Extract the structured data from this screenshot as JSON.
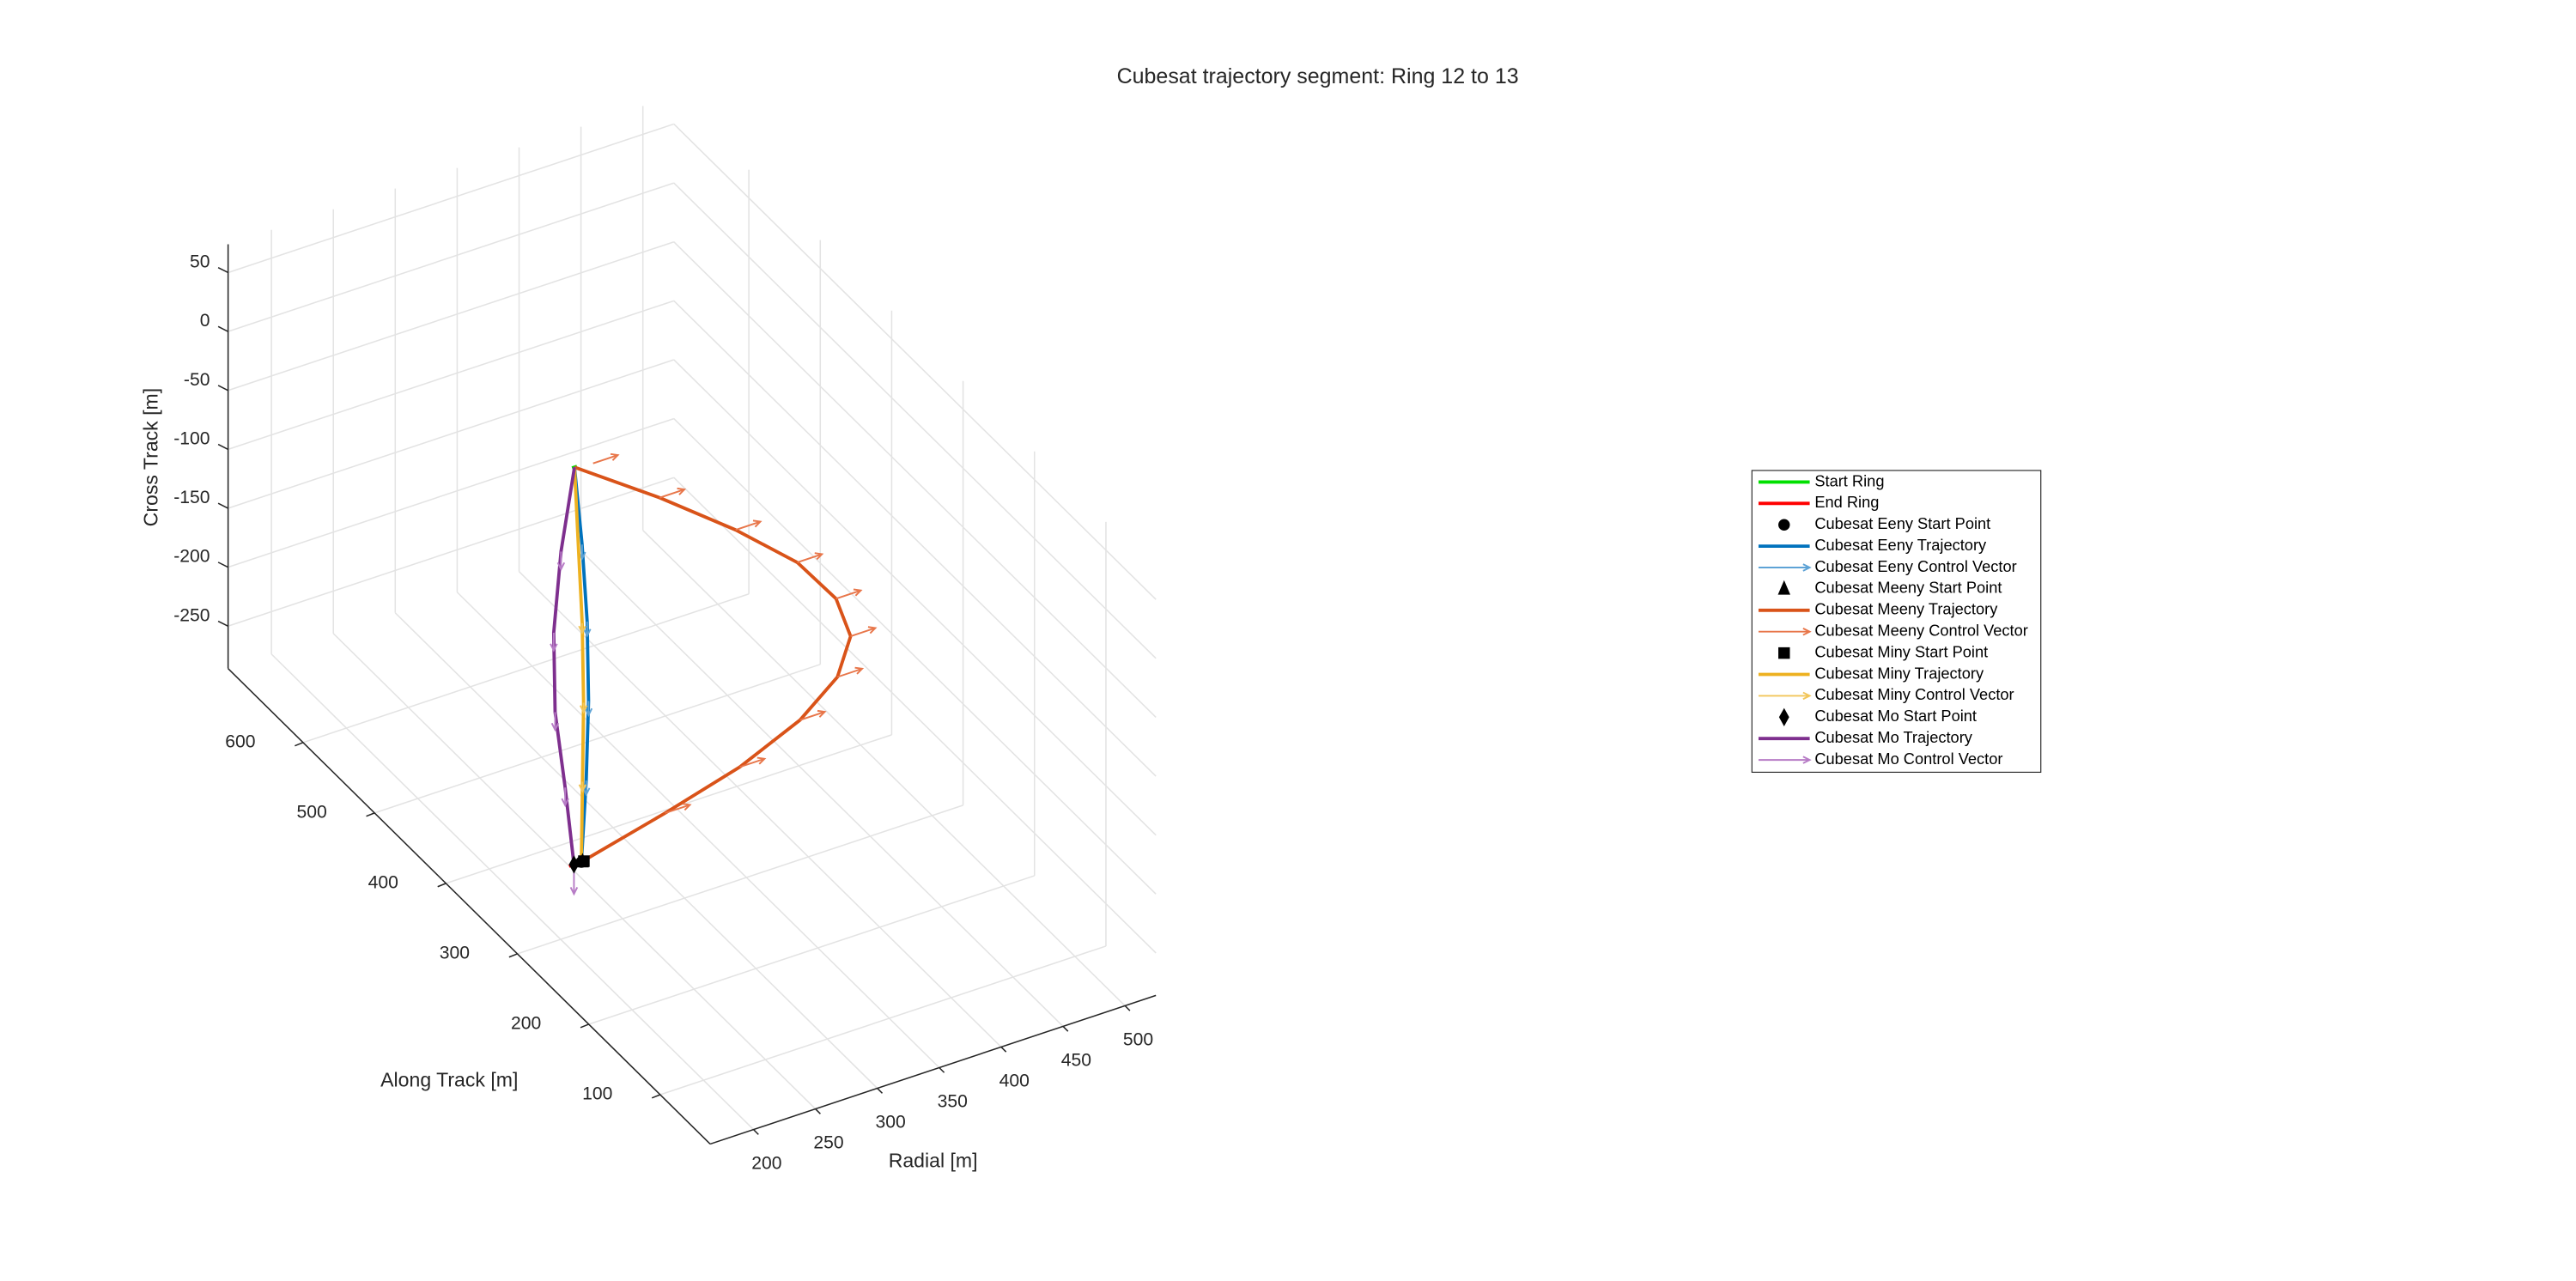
{
  "chart_data": {
    "type": "line3d",
    "title": "Cubesat trajectory segment: Ring 12 to 13",
    "xlabel": "Radial [m]",
    "ylabel": "Along Track [m]",
    "zlabel": "Cross Track [m]",
    "xlim": [
      165,
      525
    ],
    "ylim": [
      30,
      705
    ],
    "zlim": [
      -286,
      74
    ],
    "xticks": [
      200,
      250,
      300,
      350,
      400,
      450,
      500
    ],
    "yticks": [
      100,
      200,
      300,
      400,
      500,
      600
    ],
    "zticks": [
      -250,
      -200,
      -150,
      -100,
      -50,
      0,
      50
    ],
    "grid": true,
    "legend": "east",
    "series": [
      {
        "name": "Start Ring",
        "style": "line",
        "color": "#00e000",
        "x": [
          253,
          257
        ],
        "y": [
          376,
          376
        ],
        "z": [
          50,
          50
        ]
      },
      {
        "name": "End Ring",
        "style": "line",
        "color": "#ff0000",
        "x": [
          190,
          197
        ],
        "y": [
          271,
          271
        ],
        "z": [
          -203,
          -203
        ]
      },
      {
        "name": "Cubesat Eeny Start Point",
        "style": "marker",
        "marker": "circle",
        "color": "#000000",
        "x": [
          200
        ],
        "y": [
          271
        ],
        "z": [
          -203
        ]
      },
      {
        "name": "Cubesat Eeny Trajectory",
        "style": "line",
        "color": "#0072bd",
        "x": [
          200,
          216,
          230,
          241,
          249,
          255
        ],
        "y": [
          271,
          292,
          313,
          334,
          355,
          376
        ],
        "z": [
          -203,
          -152,
          -102,
          -51,
          -1,
          50
        ]
      },
      {
        "name": "Cubesat Eeny Control Vector",
        "style": "vector",
        "color": "#5ea3d6",
        "x": [
          216,
          230,
          241,
          249
        ],
        "y": [
          292,
          313,
          334,
          355
        ],
        "z": [
          -152,
          -102,
          -51,
          -1
        ],
        "u": [
          0,
          0,
          0,
          0
        ],
        "v": [
          0,
          0,
          0,
          0
        ],
        "w": [
          -12,
          -12,
          -12,
          -12
        ]
      },
      {
        "name": "Cubesat Meeny Start Point",
        "style": "marker",
        "marker": "triangle",
        "color": "#000000",
        "x": [
          201
        ],
        "y": [
          271
        ],
        "z": [
          -203
        ]
      },
      {
        "name": "Cubesat Meeny Trajectory",
        "style": "line",
        "color": "#d95319",
        "x": [
          200,
          274,
          340,
          395,
          431,
          448,
          442,
          417,
          373,
          318,
          255
        ],
        "y": [
          271,
          282,
          292,
          303,
          313,
          324,
          334,
          345,
          355,
          366,
          376
        ],
        "z": [
          -203,
          -194,
          -184,
          -170,
          -152,
          -130,
          -102,
          -69,
          -32,
          8,
          50
        ]
      },
      {
        "name": "Cubesat Meeny Control Vector",
        "style": "vector",
        "color": "#e8764a",
        "x": [
          274,
          340,
          395,
          431,
          448,
          442,
          417,
          373,
          318,
          270
        ],
        "y": [
          282,
          292,
          303,
          313,
          324,
          334,
          345,
          355,
          366,
          376
        ],
        "z": [
          -194,
          -184,
          -170,
          -152,
          -130,
          -102,
          -69,
          -32,
          8,
          48
        ],
        "u": [
          20,
          20,
          20,
          20,
          20,
          20,
          20,
          20,
          20,
          20
        ],
        "v": [
          0,
          0,
          0,
          0,
          0,
          0,
          0,
          0,
          0,
          0
        ],
        "w": [
          0,
          0,
          0,
          0,
          0,
          0,
          0,
          0,
          0,
          0
        ]
      },
      {
        "name": "Cubesat Miny Start Point",
        "style": "marker",
        "marker": "square",
        "color": "#000000",
        "x": [
          202
        ],
        "y": [
          271
        ],
        "z": [
          -203
        ]
      },
      {
        "name": "Cubesat Miny Trajectory",
        "style": "line",
        "color": "#edb120",
        "x": [
          200,
          213,
          226,
          237,
          246,
          255
        ],
        "y": [
          271,
          292,
          313,
          334,
          355,
          376
        ],
        "z": [
          -203,
          -152,
          -102,
          -51,
          -1,
          50
        ]
      },
      {
        "name": "Cubesat Miny Control Vector",
        "style": "vector",
        "color": "#f2c65a",
        "x": [
          213,
          226,
          237
        ],
        "y": [
          292,
          313,
          334
        ],
        "z": [
          -152,
          -102,
          -51
        ],
        "u": [
          0,
          0,
          0
        ],
        "v": [
          0,
          0,
          0
        ],
        "w": [
          -8,
          -8,
          -8
        ]
      },
      {
        "name": "Cubesat Mo Start Point",
        "style": "marker",
        "marker": "diamond",
        "color": "#000000",
        "x": [
          194
        ],
        "y": [
          271
        ],
        "z": [
          -203
        ]
      },
      {
        "name": "Cubesat Mo Trajectory",
        "style": "line",
        "color": "#7e2f8e",
        "x": [
          194,
          199,
          203,
          214,
          232,
          255
        ],
        "y": [
          271,
          292,
          313,
          334,
          355,
          376
        ],
        "z": [
          -203,
          -152,
          -102,
          -51,
          -1,
          50
        ]
      },
      {
        "name": "Cubesat Mo Control Vector",
        "style": "vector",
        "color": "#b77cc6",
        "x": [
          194,
          199,
          203,
          214,
          232
        ],
        "y": [
          271,
          292,
          313,
          334,
          355
        ],
        "z": [
          -203,
          -152,
          -102,
          -51,
          -1
        ],
        "u": [
          0,
          0,
          0,
          0,
          0
        ],
        "v": [
          0,
          0,
          0,
          0,
          0
        ],
        "w": [
          -25,
          -15,
          -15,
          -15,
          -15
        ]
      }
    ]
  }
}
